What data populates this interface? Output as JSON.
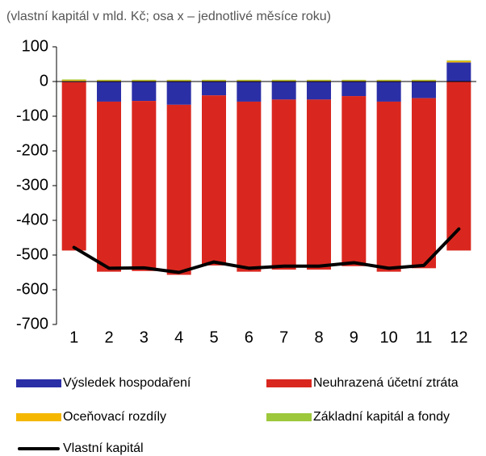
{
  "chart_data": {
    "type": "bar",
    "stacked": true,
    "subtitle": "(vlastní kapitál v mld. Kč; osa x – jednotlivé měsíce roku)",
    "categories": [
      "1",
      "2",
      "3",
      "4",
      "5",
      "6",
      "7",
      "8",
      "9",
      "10",
      "11",
      "12"
    ],
    "series": [
      {
        "name": "Výsledek hospodaření",
        "color": "#2b2fa6",
        "values": [
          -2,
          -58,
          -56,
          -67,
          -40,
          -58,
          -52,
          -52,
          -42,
          -58,
          -48,
          55
        ]
      },
      {
        "name": "Neuhrazená účetní ztráta",
        "color": "#d9271f",
        "values": [
          -485,
          -490,
          -490,
          -490,
          -490,
          -490,
          -490,
          -490,
          -490,
          -490,
          -490,
          -487
        ]
      },
      {
        "name": "Oceňovací rozdíly",
        "color": "#f5b700",
        "values": [
          4,
          3,
          3,
          3,
          3,
          3,
          3,
          3,
          3,
          3,
          3,
          4
        ]
      },
      {
        "name": "Základní kapitál a fondy",
        "color": "#9dc83b",
        "values": [
          2,
          2,
          2,
          2,
          2,
          2,
          2,
          2,
          2,
          2,
          2,
          2
        ]
      },
      {
        "name": "Vlastní kapitál",
        "color": "#000000",
        "type": "line",
        "values": [
          -478,
          -538,
          -537,
          -550,
          -520,
          -538,
          -532,
          -532,
          -522,
          -538,
          -530,
          -425
        ]
      }
    ],
    "ylim": [
      -700,
      100
    ],
    "yticks": [
      100,
      0,
      -100,
      -200,
      -300,
      -400,
      -500,
      -600,
      -700
    ]
  }
}
